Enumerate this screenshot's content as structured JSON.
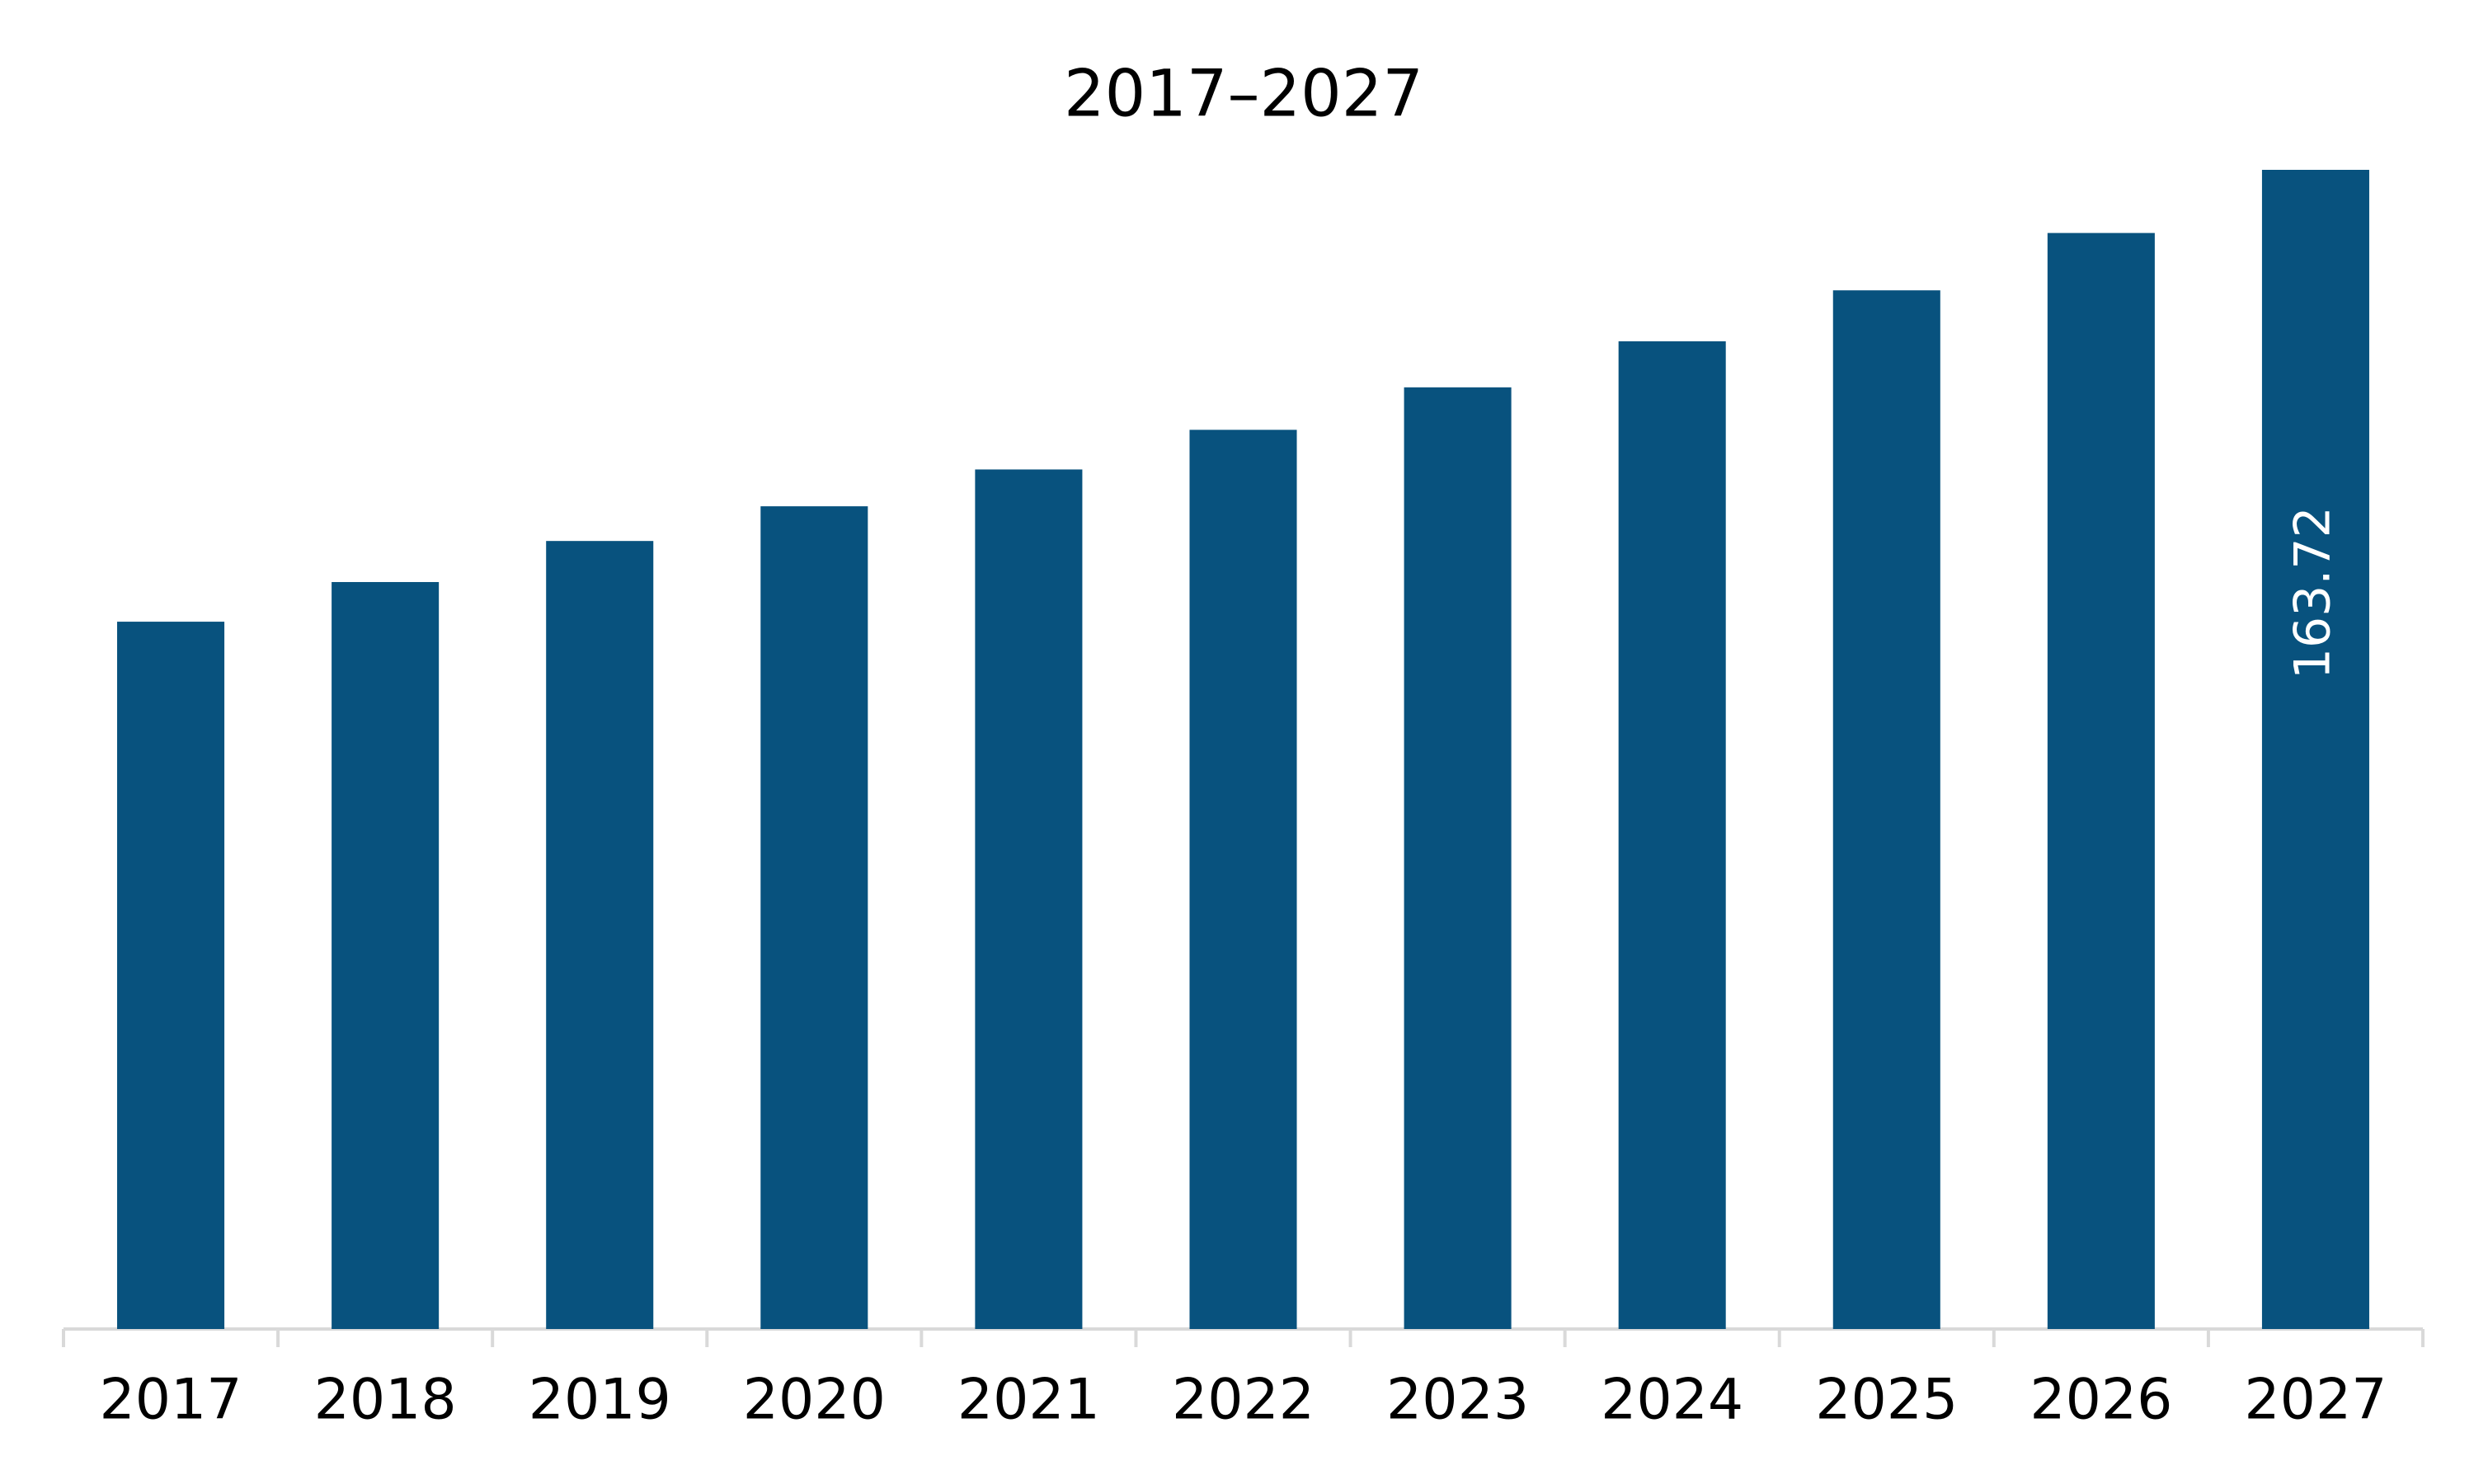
{
  "chart_data": {
    "type": "bar",
    "title": "2017–2027",
    "categories": [
      "2017",
      "2018",
      "2019",
      "2020",
      "2021",
      "2022",
      "2023",
      "2024",
      "2025",
      "2026",
      "2027"
    ],
    "values": [
      99.9,
      105.5,
      111.3,
      116.2,
      121.4,
      127.0,
      133.0,
      139.5,
      146.7,
      154.8,
      163.72
    ],
    "value_labels": [
      null,
      null,
      null,
      null,
      null,
      null,
      null,
      null,
      null,
      null,
      "163.72"
    ],
    "color": "#08527e"
  }
}
